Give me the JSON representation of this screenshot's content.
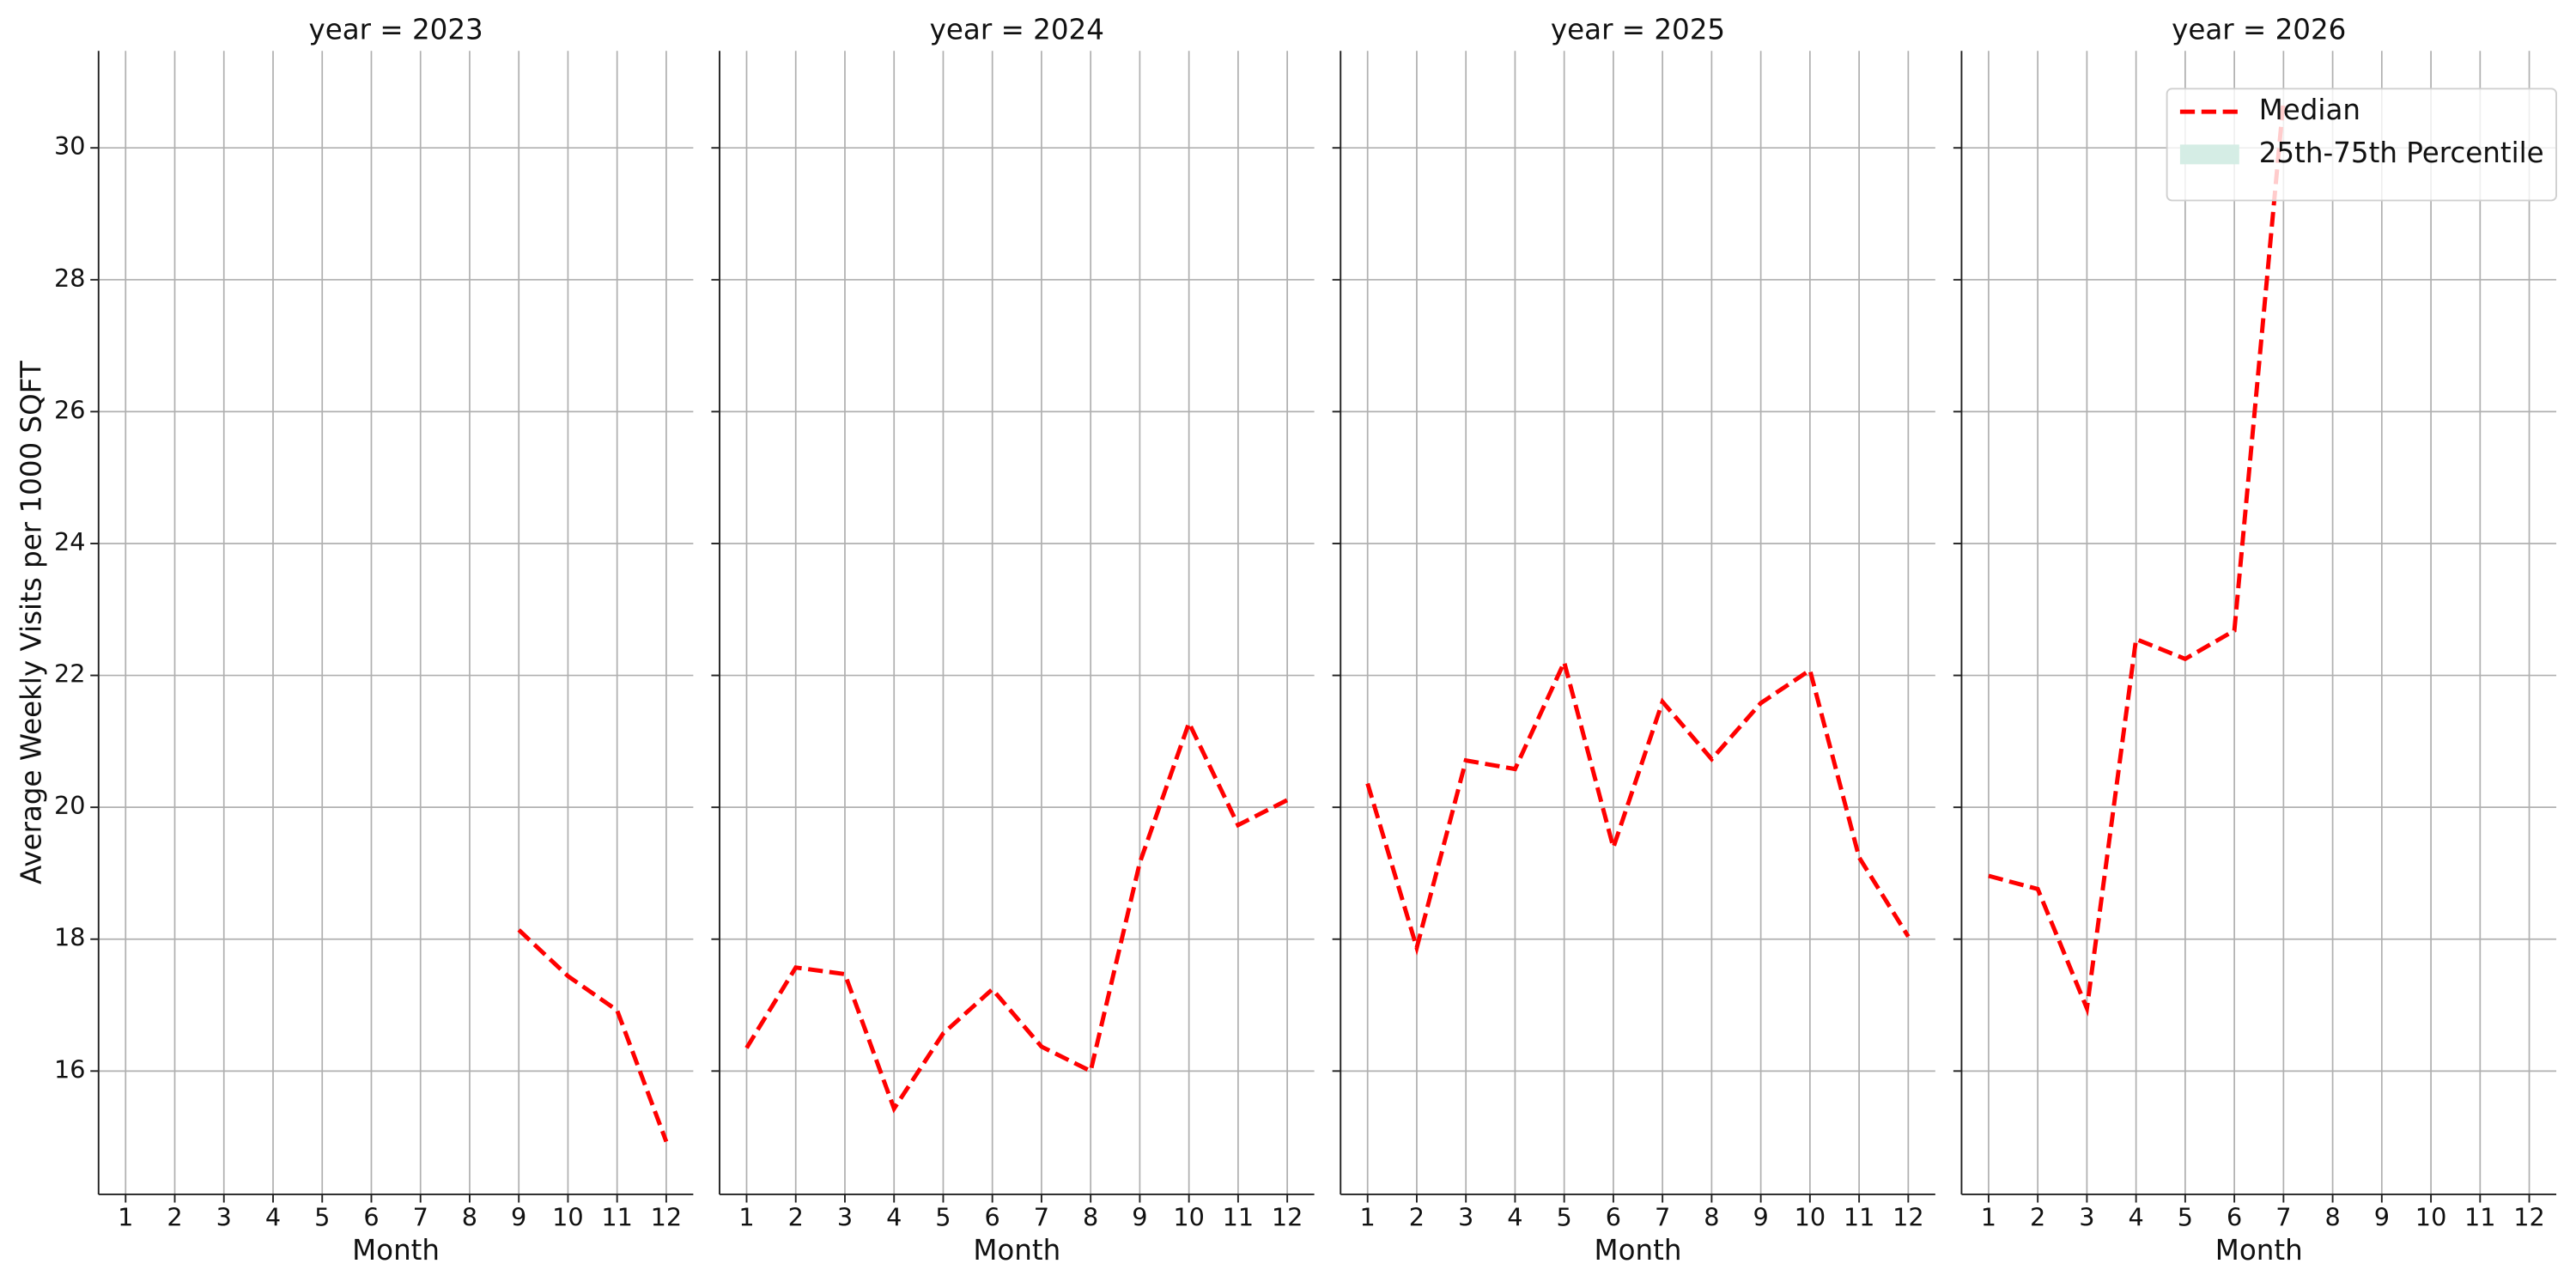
{
  "chart_data": [
    {
      "type": "line",
      "title": "year = 2023",
      "x_label": "Month",
      "y_label": "Average Weekly Visits per 1000 SQFT",
      "x": [
        1,
        2,
        3,
        4,
        5,
        6,
        7,
        8,
        9,
        10,
        11,
        12
      ],
      "series": [
        {
          "name": "Median",
          "color": "#ff0000",
          "values": [
            null,
            null,
            null,
            null,
            null,
            null,
            null,
            null,
            18.14,
            17.44,
            16.92,
            14.93
          ]
        }
      ],
      "xlim": [
        0.45,
        12.55
      ],
      "ylim": [
        14.13,
        31.47
      ],
      "xticks": [
        1,
        2,
        3,
        4,
        5,
        6,
        7,
        8,
        9,
        10,
        11,
        12
      ],
      "yticks": [
        16,
        18,
        20,
        22,
        24,
        26,
        28,
        30
      ],
      "grid": true
    },
    {
      "type": "line",
      "title": "year = 2024",
      "x_label": "Month",
      "x": [
        1,
        2,
        3,
        4,
        5,
        6,
        7,
        8,
        9,
        10,
        11,
        12
      ],
      "series": [
        {
          "name": "Median",
          "color": "#ff0000",
          "values": [
            16.35,
            17.57,
            17.47,
            15.43,
            16.57,
            17.24,
            16.37,
            16.0,
            19.16,
            21.28,
            19.73,
            20.11
          ]
        }
      ],
      "xlim": [
        0.45,
        12.55
      ],
      "ylim": [
        14.13,
        31.47
      ],
      "xticks": [
        1,
        2,
        3,
        4,
        5,
        6,
        7,
        8,
        9,
        10,
        11,
        12
      ],
      "yticks": [
        16,
        18,
        20,
        22,
        24,
        26,
        28,
        30
      ],
      "grid": true
    },
    {
      "type": "line",
      "title": "year = 2025",
      "x_label": "Month",
      "x": [
        1,
        2,
        3,
        4,
        5,
        6,
        7,
        8,
        9,
        10,
        11,
        12
      ],
      "series": [
        {
          "name": "Median",
          "color": "#ff0000",
          "values": [
            20.36,
            17.87,
            20.71,
            20.58,
            22.2,
            19.39,
            21.6,
            20.73,
            21.58,
            22.08,
            19.24,
            18.04
          ]
        }
      ],
      "xlim": [
        0.45,
        12.55
      ],
      "ylim": [
        14.13,
        31.47
      ],
      "xticks": [
        1,
        2,
        3,
        4,
        5,
        6,
        7,
        8,
        9,
        10,
        11,
        12
      ],
      "yticks": [
        16,
        18,
        20,
        22,
        24,
        26,
        28,
        30
      ],
      "grid": true
    },
    {
      "type": "line",
      "title": "year = 2026",
      "x_label": "Month",
      "x": [
        1,
        2,
        3,
        4,
        5,
        6,
        7,
        8,
        9,
        10,
        11,
        12
      ],
      "series": [
        {
          "name": "Median",
          "color": "#ff0000",
          "values": [
            18.96,
            18.76,
            16.95,
            22.55,
            22.25,
            22.68,
            30.72,
            null,
            null,
            null,
            null,
            null
          ]
        },
        {
          "name": "25th-75th Percentile",
          "color": "#d5ede5",
          "kind": "band"
        }
      ],
      "legend": "upper right",
      "xlim": [
        0.45,
        12.55
      ],
      "ylim": [
        14.13,
        31.47
      ],
      "xticks": [
        1,
        2,
        3,
        4,
        5,
        6,
        7,
        8,
        9,
        10,
        11,
        12
      ],
      "yticks": [
        16,
        18,
        20,
        22,
        24,
        26,
        28,
        30
      ],
      "grid": true
    }
  ]
}
